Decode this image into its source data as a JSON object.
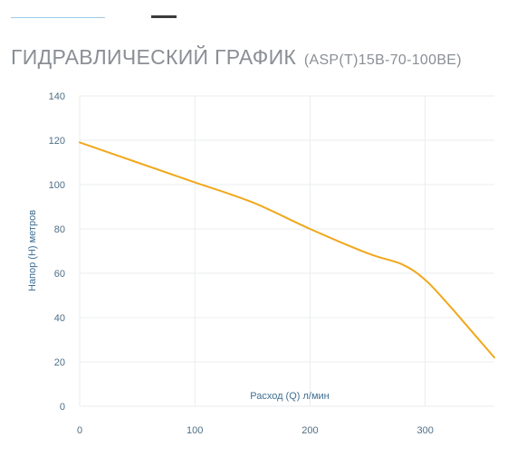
{
  "header": {
    "title": "ГИДРАВЛИЧЕСКИЙ ГРАФИК",
    "model": "(ASP(T)15B-70-100BE)"
  },
  "chart_data": {
    "type": "line",
    "title": "ГИДРАВЛИЧЕСКИЙ ГРАФИК (ASP(T)15B-70-100BE)",
    "xlabel": "Расход (Q) л/мин",
    "ylabel": "Напор (H) метров",
    "xlim": [
      0,
      360
    ],
    "ylim": [
      0,
      140
    ],
    "xticks": [
      0,
      100,
      200,
      300
    ],
    "yticks": [
      0,
      20,
      40,
      60,
      80,
      100,
      120,
      140
    ],
    "grid": true,
    "line_color": "#f0a81c",
    "grid_color": "#e9ecef",
    "series": [
      {
        "x": [
          0,
          50,
          100,
          150,
          200,
          250,
          280,
          300,
          320,
          340,
          360
        ],
        "values": [
          119,
          110,
          101,
          92,
          80,
          69,
          64,
          57,
          46,
          34,
          22
        ]
      }
    ]
  }
}
